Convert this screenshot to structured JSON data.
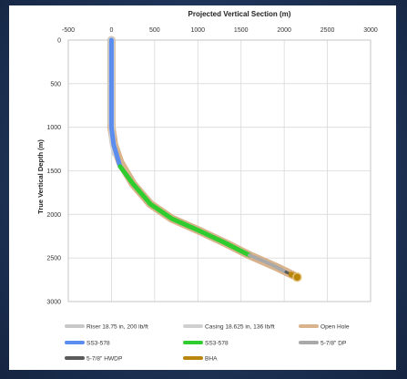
{
  "chart_data": {
    "type": "line",
    "title": "Projected Vertical Section (m)",
    "xlabel": "",
    "ylabel": "True Vertical Depth (m)",
    "xlim": [
      -500,
      3000
    ],
    "ylim": [
      0,
      3000
    ],
    "y_inverted": true,
    "x_ticks": [
      -500,
      0,
      500,
      1000,
      1500,
      2000,
      2500,
      3000
    ],
    "x_tick_labels": [
      "-500",
      "0",
      "500",
      "1000",
      "1500",
      "2000",
      "2500",
      "3000"
    ],
    "y_ticks": [
      0,
      500,
      1000,
      1500,
      2000,
      2500,
      3000
    ],
    "y_tick_labels": [
      "0",
      "500",
      "1000",
      "1500",
      "2000",
      "2500",
      "3000"
    ],
    "x_axis_position": "top",
    "grid": true,
    "legend_position": "bottom",
    "series": [
      {
        "name": "Open Hole",
        "color": "#d9b38c",
        "width": 9,
        "x": [
          0,
          0,
          0,
          30,
          100,
          250,
          450,
          700,
          1000,
          1300,
          1600,
          1900,
          2150
        ],
        "y": [
          0,
          500,
          1000,
          1200,
          1400,
          1650,
          1880,
          2050,
          2180,
          2320,
          2470,
          2600,
          2720
        ]
      },
      {
        "name": "Riser 18.75 in, 200 lb/ft",
        "color": "#c8c8c8",
        "width": 8,
        "x": [
          0,
          0
        ],
        "y": [
          0,
          950
        ]
      },
      {
        "name": "Casing 18.625 in, 136 lb/ft",
        "color": "#d0d0d0",
        "width": 7,
        "x": [
          0,
          0,
          10,
          40
        ],
        "y": [
          0,
          950,
          1150,
          1300
        ]
      },
      {
        "name": "SS3-578",
        "color": "#5b8def",
        "width": 5,
        "x": [
          0,
          0,
          0,
          25,
          100
        ],
        "y": [
          0,
          500,
          1000,
          1200,
          1450
        ]
      },
      {
        "name": "SS3-578",
        "color": "#2fcc2f",
        "width": 5,
        "x": [
          100,
          250,
          450,
          700,
          1000,
          1300,
          1600
        ],
        "y": [
          1450,
          1650,
          1880,
          2050,
          2180,
          2320,
          2470
        ]
      },
      {
        "name": "5-7/8\" DP",
        "color": "#a9a9a9",
        "width": 4,
        "x": [
          1600,
          1750,
          1900,
          2020
        ],
        "y": [
          2470,
          2530,
          2600,
          2660
        ]
      },
      {
        "name": "5-7/8\" HWDP",
        "color": "#5a5a5a",
        "width": 3,
        "x": [
          2020,
          2080
        ],
        "y": [
          2660,
          2690
        ]
      },
      {
        "name": "BHA",
        "color": "#b8860b",
        "width": 6,
        "x": [
          2080,
          2150
        ],
        "y": [
          2690,
          2720
        ]
      }
    ],
    "legend": [
      {
        "label": "Riser 18.75 in, 200 lb/ft",
        "color": "#c8c8c8"
      },
      {
        "label": "Casing 18.625 in, 136 lb/ft",
        "color": "#d0d0d0"
      },
      {
        "label": "Open Hole",
        "color": "#d9b38c"
      },
      {
        "label": "SS3-578",
        "color": "#5b8def"
      },
      {
        "label": "SS3-578",
        "color": "#2fcc2f"
      },
      {
        "label": "5-7/8\" DP",
        "color": "#a9a9a9"
      },
      {
        "label": "5-7/8\" HWDP",
        "color": "#5a5a5a"
      },
      {
        "label": "BHA",
        "color": "#b8860b"
      }
    ]
  }
}
